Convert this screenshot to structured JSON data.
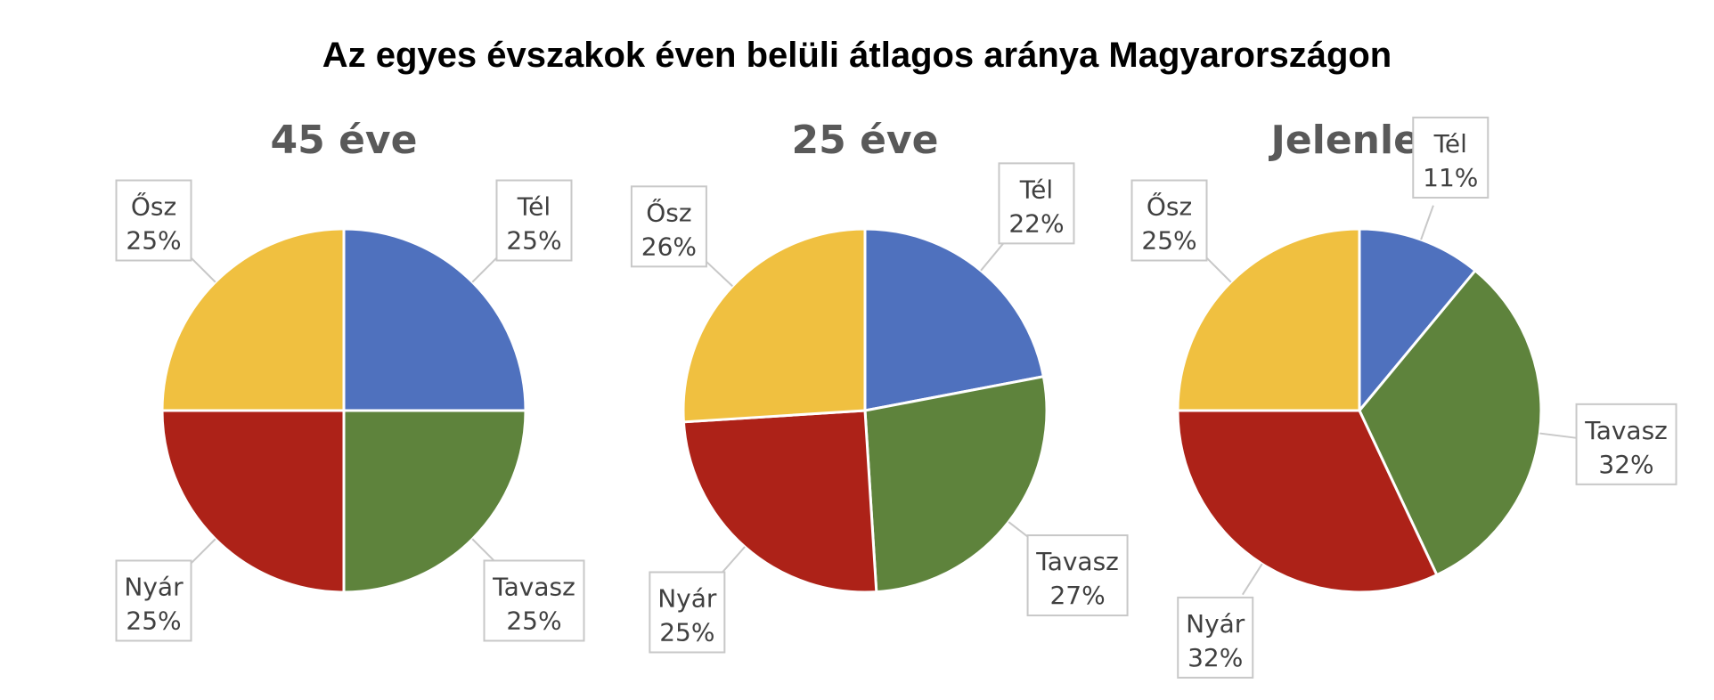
{
  "title": "Az egyes évszakok éven belüli átlagos aránya Magyarországon",
  "colors": {
    "Tél": "#4f71be",
    "Tavasz": "#5e833c",
    "Nyár": "#ad2218",
    "Ősz": "#f0c040"
  },
  "chart_data": [
    {
      "type": "pie",
      "title": "45 éve",
      "slices": [
        {
          "label": "Tél",
          "value": 25
        },
        {
          "label": "Tavasz",
          "value": 25
        },
        {
          "label": "Nyár",
          "value": 25
        },
        {
          "label": "Ősz",
          "value": 25
        }
      ]
    },
    {
      "type": "pie",
      "title": "25 éve",
      "slices": [
        {
          "label": "Tél",
          "value": 22
        },
        {
          "label": "Tavasz",
          "value": 27
        },
        {
          "label": "Nyár",
          "value": 25
        },
        {
          "label": "Ősz",
          "value": 26
        }
      ]
    },
    {
      "type": "pie",
      "title": "Jelenleg",
      "slices": [
        {
          "label": "Tél",
          "value": 11
        },
        {
          "label": "Tavasz",
          "value": 32
        },
        {
          "label": "Nyár",
          "value": 32
        },
        {
          "label": "Ősz",
          "value": 25
        }
      ]
    }
  ]
}
